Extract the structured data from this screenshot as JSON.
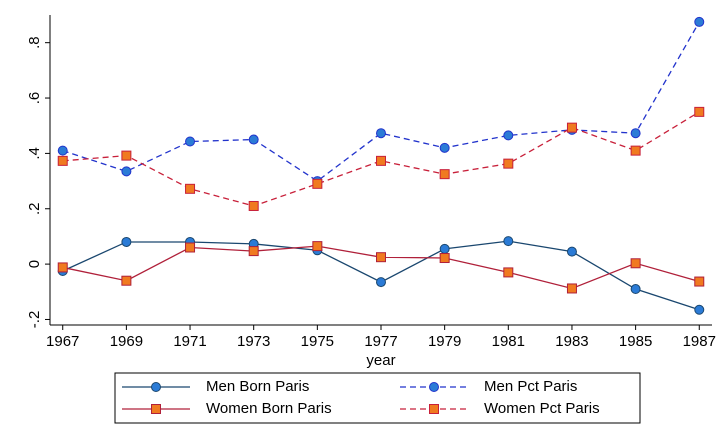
{
  "chart_data": {
    "type": "line",
    "x_label": "year",
    "x": [
      1967,
      1969,
      1971,
      1973,
      1975,
      1977,
      1979,
      1981,
      1983,
      1985,
      1987
    ],
    "xlim": [
      1966.6,
      1987.4
    ],
    "xticks": [
      1967,
      1969,
      1971,
      1973,
      1975,
      1977,
      1979,
      1981,
      1983,
      1985,
      1987
    ],
    "ylim": [
      -0.22,
      0.9
    ],
    "yticks": [
      {
        "value": -0.2,
        "label": "-.2"
      },
      0,
      {
        "value": 0.2,
        "label": ".2"
      },
      {
        "value": 0.4,
        "label": ".4"
      },
      {
        "value": 0.6,
        "label": ".6"
      },
      {
        "value": 0.8,
        "label": ".8"
      }
    ],
    "grid": false,
    "legend_position": "bottom",
    "series": [
      {
        "name": "Men Born Paris",
        "color": "#1a476f",
        "marker": "circle",
        "marker_fill": "#2b7bd6",
        "dash": false,
        "values": [
          -0.025,
          0.08,
          0.08,
          0.073,
          0.05,
          -0.065,
          0.055,
          0.083,
          0.045,
          -0.09,
          -0.165
        ]
      },
      {
        "name": "Men Pct Paris",
        "color": "#2233cc",
        "marker": "circle",
        "marker_fill": "#2b7bd6",
        "dash": true,
        "values": [
          0.41,
          0.335,
          0.443,
          0.45,
          0.3,
          0.473,
          0.42,
          0.465,
          0.485,
          0.473,
          0.875
        ]
      },
      {
        "name": "Women Born Paris",
        "color": "#b0203a",
        "marker": "square",
        "marker_fill": "#f07a20",
        "dash": false,
        "values": [
          -0.012,
          -0.06,
          0.06,
          0.047,
          0.065,
          0.025,
          0.022,
          -0.03,
          -0.088,
          0.003,
          -0.063
        ]
      },
      {
        "name": "Women Pct Paris",
        "color": "#c8203a",
        "marker": "square",
        "marker_fill": "#f07a20",
        "dash": true,
        "values": [
          0.373,
          0.392,
          0.272,
          0.21,
          0.29,
          0.373,
          0.325,
          0.363,
          0.493,
          0.41,
          0.55
        ]
      }
    ]
  }
}
